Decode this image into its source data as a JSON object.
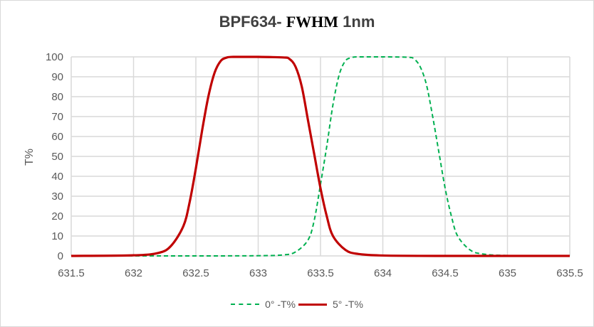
{
  "chart_data": {
    "type": "line",
    "title": "BPF634- FWHM 1nm",
    "title_parts": [
      "BPF634- ",
      "FWHM",
      " 1nm"
    ],
    "xlabel": "",
    "ylabel": "T%",
    "xlim": [
      631.5,
      635.5
    ],
    "ylim": [
      0,
      100
    ],
    "x_ticks": [
      "631.5",
      "632",
      "632.5",
      "633",
      "633.5",
      "634",
      "634.5",
      "635",
      "635.5"
    ],
    "y_ticks": [
      "0",
      "10",
      "20",
      "30",
      "40",
      "50",
      "60",
      "70",
      "80",
      "90",
      "100"
    ],
    "grid": true,
    "legend_position": "bottom",
    "series": [
      {
        "name": "0° -T%",
        "color": "#00b050",
        "style": "dashed",
        "x": [
          631.5,
          632.0,
          632.5,
          633.0,
          633.2,
          633.3,
          633.4,
          633.45,
          633.5,
          633.55,
          633.6,
          633.65,
          633.7,
          633.75,
          633.8,
          634.0,
          634.2,
          634.25,
          634.3,
          634.35,
          634.4,
          634.45,
          634.5,
          634.55,
          634.6,
          634.7,
          634.8,
          635.0,
          635.5
        ],
        "values": [
          0,
          0,
          0,
          0.1,
          0.5,
          2,
          8,
          18,
          36,
          55,
          76,
          91,
          98,
          99.6,
          100,
          100,
          99.8,
          99,
          95,
          86,
          70,
          52,
          34,
          20,
          10,
          3,
          1,
          0.2,
          0
        ]
      },
      {
        "name": "5° -T%",
        "color": "#c00000",
        "style": "solid",
        "x": [
          631.5,
          632.0,
          632.2,
          632.3,
          632.4,
          632.45,
          632.5,
          632.55,
          632.6,
          632.65,
          632.7,
          632.75,
          632.8,
          633.0,
          633.2,
          633.25,
          633.3,
          633.35,
          633.4,
          633.45,
          633.5,
          633.55,
          633.6,
          633.7,
          633.8,
          634.0,
          634.5,
          635.5
        ],
        "values": [
          0,
          0.3,
          1.5,
          5,
          15,
          27,
          44,
          63,
          80,
          92,
          98,
          99.7,
          100,
          100,
          99.7,
          99,
          95,
          85,
          68,
          51,
          34,
          20,
          10,
          3,
          1,
          0.2,
          0,
          0
        ]
      }
    ]
  },
  "legend": {
    "items": [
      {
        "label": "0°  -T%"
      },
      {
        "label": "5°  -T%"
      }
    ]
  }
}
